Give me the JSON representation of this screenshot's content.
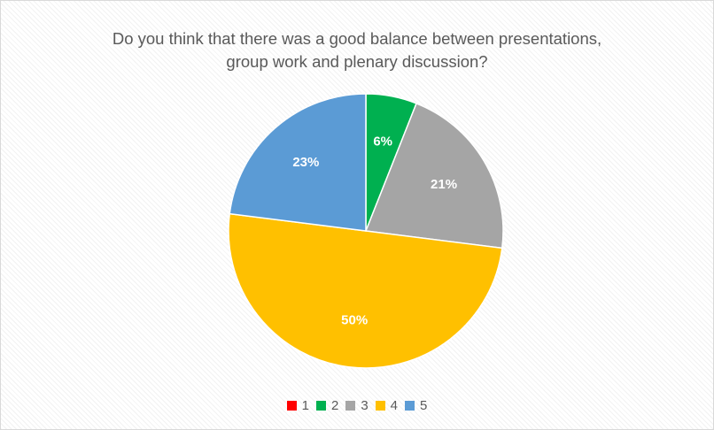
{
  "chart_data": {
    "type": "pie",
    "title_lines": [
      "Do you think that there was a good balance between presentations,",
      "group work and plenary discussion?"
    ],
    "categories": [
      "1",
      "2",
      "3",
      "4",
      "5"
    ],
    "values": [
      0,
      6,
      21,
      50,
      23
    ],
    "data_labels": [
      "",
      "6%",
      "21%",
      "50%",
      "23%"
    ],
    "colors": [
      "#ff0000",
      "#00b050",
      "#a5a5a5",
      "#ffc000",
      "#5b9bd5"
    ],
    "start_angle_deg": 0,
    "direction": "clockwise",
    "legend_position": "bottom"
  }
}
